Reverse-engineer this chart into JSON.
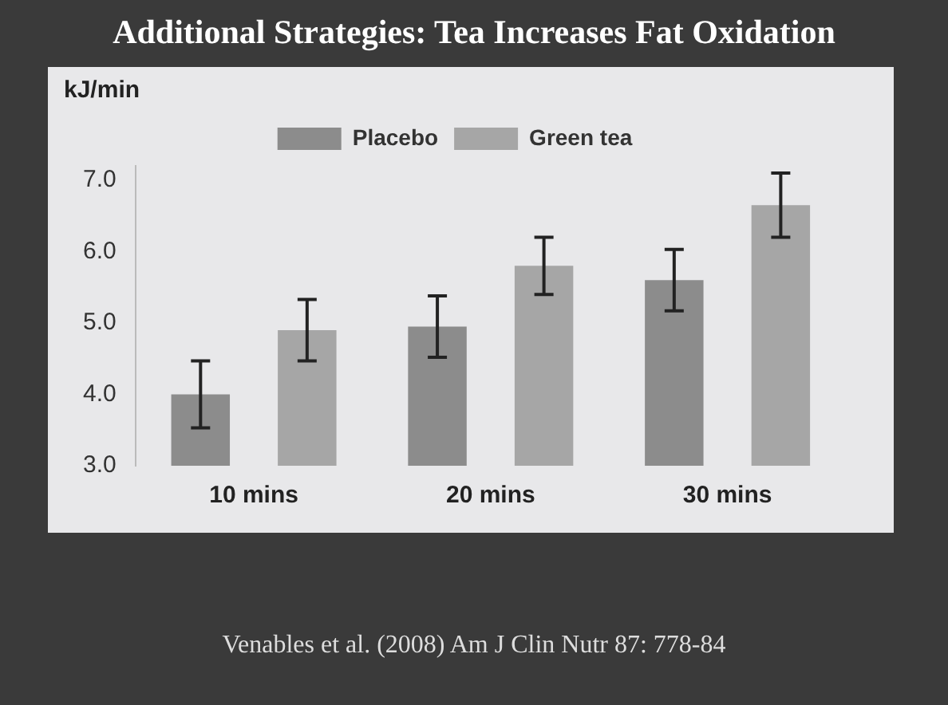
{
  "chart_data": {
    "type": "bar",
    "title": "Additional Strategies: Tea Increases Fat Oxidation",
    "ylabel": "kJ/min",
    "categories": [
      "10 mins",
      "20 mins",
      "30 mins"
    ],
    "series": [
      {
        "name": "Placebo",
        "color": "#8c8c8c",
        "values": [
          4.0,
          4.95,
          5.6
        ],
        "errors": [
          0.47,
          0.43,
          0.43
        ]
      },
      {
        "name": "Green tea",
        "color": "#a6a6a6",
        "values": [
          4.9,
          5.8,
          6.65
        ],
        "errors": [
          0.43,
          0.4,
          0.45
        ]
      }
    ],
    "ylim": [
      3,
      7.2
    ],
    "yticks": [
      {
        "value": 3,
        "label": "3.0"
      },
      {
        "value": 4,
        "label": "4.0"
      },
      {
        "value": 5,
        "label": "5.0"
      },
      {
        "value": 6,
        "label": "6.0"
      },
      {
        "value": 7,
        "label": "7.0"
      }
    ],
    "legend": "top",
    "grid": false,
    "annotations": [
      "Venables et al. (2008) Am J Clin Nutr 87: 778-84"
    ]
  }
}
